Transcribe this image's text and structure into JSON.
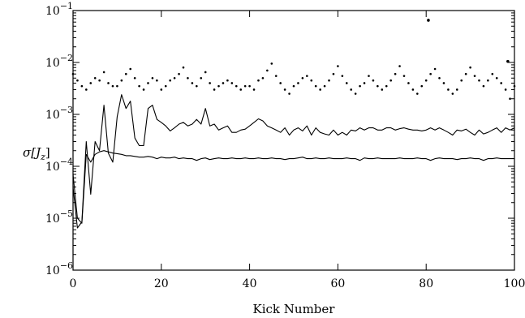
{
  "chart_data": {
    "type": "line",
    "title": "",
    "xlabel": "Kick Number",
    "ylabel": "σ[J_z]",
    "ylabel_display": {
      "main": "σ[J",
      "sub": "z",
      "close": "]"
    },
    "xlim": [
      0,
      100
    ],
    "ylim": [
      1e-06,
      0.1
    ],
    "yscale": "log",
    "grid": false,
    "x_ticks": [
      0,
      20,
      40,
      60,
      80,
      100
    ],
    "x_tick_labels": [
      "0",
      "20",
      "40",
      "60",
      "80",
      "100"
    ],
    "y_ticks": [
      {
        "value": 1e-06,
        "base": "10",
        "exp": "−6"
      },
      {
        "value": 1e-05,
        "base": "10",
        "exp": "−5"
      },
      {
        "value": 0.0001,
        "base": "10",
        "exp": "−4"
      },
      {
        "value": 0.001,
        "base": "10",
        "exp": "−3"
      },
      {
        "value": 0.01,
        "base": "10",
        "exp": "−2"
      },
      {
        "value": 0.1,
        "base": "10",
        "exp": "−1"
      }
    ],
    "series": [
      {
        "style": "dotted-markers",
        "x": [
          0,
          1,
          2,
          3,
          4,
          5,
          6,
          7,
          8,
          9,
          10,
          11,
          12,
          13,
          14,
          15,
          16,
          17,
          18,
          19,
          20,
          21,
          22,
          23,
          24,
          25,
          26,
          27,
          28,
          29,
          30,
          31,
          32,
          33,
          34,
          35,
          36,
          37,
          38,
          39,
          40,
          41,
          42,
          43,
          44,
          45,
          46,
          47,
          48,
          49,
          50,
          51,
          52,
          53,
          54,
          55,
          56,
          57,
          58,
          59,
          60,
          61,
          62,
          63,
          64,
          65,
          66,
          67,
          68,
          69,
          70,
          71,
          72,
          73,
          74,
          75,
          76,
          77,
          78,
          79,
          80,
          81,
          82,
          83,
          84,
          85,
          86,
          87,
          88,
          89,
          90,
          91,
          92,
          93,
          94,
          95,
          96,
          97,
          98,
          99,
          100
        ],
        "y": [
          0.006,
          0.0045,
          0.0035,
          0.003,
          0.004,
          0.005,
          0.0045,
          0.0065,
          0.004,
          0.0035,
          0.0035,
          0.0045,
          0.006,
          0.0075,
          0.005,
          0.0035,
          0.003,
          0.004,
          0.005,
          0.0045,
          0.003,
          0.0035,
          0.0045,
          0.005,
          0.006,
          0.008,
          0.005,
          0.004,
          0.0035,
          0.005,
          0.0065,
          0.004,
          0.003,
          0.0035,
          0.004,
          0.0045,
          0.004,
          0.0035,
          0.003,
          0.0035,
          0.0035,
          0.003,
          0.0045,
          0.005,
          0.007,
          0.0095,
          0.0055,
          0.004,
          0.003,
          0.0025,
          0.0035,
          0.004,
          0.005,
          0.0055,
          0.0045,
          0.0035,
          0.003,
          0.0035,
          0.0045,
          0.006,
          0.0085,
          0.0055,
          0.004,
          0.003,
          0.0025,
          0.0035,
          0.004,
          0.0055,
          0.0045,
          0.0035,
          0.003,
          0.0035,
          0.0045,
          0.006,
          0.0085,
          0.0055,
          0.004,
          0.003,
          0.0025,
          0.0035,
          0.0045,
          0.006,
          0.0075,
          0.005,
          0.004,
          0.003,
          0.0025,
          0.003,
          0.0045,
          0.006,
          0.008,
          0.0055,
          0.0045,
          0.0035,
          0.0045,
          0.006,
          0.005,
          0.004,
          0.003,
          0.002,
          0.0035
        ],
        "extra_points": [
          {
            "x": 80.5,
            "y": 0.065
          },
          {
            "x": 98.5,
            "y": 0.0105
          }
        ]
      },
      {
        "style": "solid-line",
        "x": [
          0,
          1,
          2,
          3,
          4,
          5,
          6,
          7,
          8,
          9,
          10,
          11,
          12,
          13,
          14,
          15,
          16,
          17,
          18,
          19,
          20,
          21,
          22,
          23,
          24,
          25,
          26,
          27,
          28,
          29,
          30,
          31,
          32,
          33,
          34,
          35,
          36,
          37,
          38,
          39,
          40,
          41,
          42,
          43,
          44,
          45,
          46,
          47,
          48,
          49,
          50,
          51,
          52,
          53,
          54,
          55,
          56,
          57,
          58,
          59,
          60,
          61,
          62,
          63,
          64,
          65,
          66,
          67,
          68,
          69,
          70,
          71,
          72,
          73,
          74,
          75,
          76,
          77,
          78,
          79,
          80,
          81,
          82,
          83,
          84,
          85,
          86,
          87,
          88,
          89,
          90,
          91,
          92,
          93,
          94,
          95,
          96,
          97,
          98,
          99,
          100
        ],
        "y": [
          4e-05,
          6.5e-06,
          8.5e-06,
          0.0003,
          2.9e-05,
          0.0003,
          0.0002,
          0.0015,
          0.00018,
          0.00012,
          0.0009,
          0.0024,
          0.0013,
          0.0018,
          0.00035,
          0.00025,
          0.00025,
          0.0013,
          0.0015,
          0.0008,
          0.0007,
          0.0006,
          0.00048,
          0.00055,
          0.00065,
          0.0007,
          0.0006,
          0.00065,
          0.0008,
          0.00065,
          0.0013,
          0.0006,
          0.00065,
          0.0005,
          0.00055,
          0.0006,
          0.00045,
          0.00045,
          0.0005,
          0.00052,
          0.0006,
          0.0007,
          0.00082,
          0.00075,
          0.0006,
          0.00055,
          0.0005,
          0.00045,
          0.00055,
          0.0004,
          0.0005,
          0.00055,
          0.00048,
          0.0006,
          0.0004,
          0.00055,
          0.00045,
          0.00042,
          0.0004,
          0.0005,
          0.0004,
          0.00045,
          0.0004,
          0.0005,
          0.00048,
          0.00055,
          0.0005,
          0.00055,
          0.00055,
          0.0005,
          0.0005,
          0.00055,
          0.00055,
          0.0005,
          0.00053,
          0.00055,
          0.00052,
          0.0005,
          0.0005,
          0.00048,
          0.0005,
          0.00055,
          0.0005,
          0.00055,
          0.0005,
          0.00045,
          0.0004,
          0.0005,
          0.00048,
          0.00052,
          0.00045,
          0.0004,
          0.0005,
          0.00042,
          0.00045,
          0.0005,
          0.00055,
          0.00045,
          0.00055,
          0.0005,
          0.00055
        ]
      },
      {
        "style": "solid-line",
        "x": [
          0,
          1,
          2,
          3,
          4,
          5,
          6,
          7,
          8,
          9,
          10,
          11,
          12,
          13,
          14,
          15,
          16,
          17,
          18,
          19,
          20,
          21,
          22,
          23,
          24,
          25,
          26,
          27,
          28,
          29,
          30,
          31,
          32,
          33,
          34,
          35,
          36,
          37,
          38,
          39,
          40,
          41,
          42,
          43,
          44,
          45,
          46,
          47,
          48,
          49,
          50,
          51,
          52,
          53,
          54,
          55,
          56,
          57,
          58,
          59,
          60,
          61,
          62,
          63,
          64,
          65,
          66,
          67,
          68,
          69,
          70,
          71,
          72,
          73,
          74,
          75,
          76,
          77,
          78,
          79,
          80,
          81,
          82,
          83,
          84,
          85,
          86,
          87,
          88,
          89,
          90,
          91,
          92,
          93,
          94,
          95,
          96,
          97,
          98,
          99,
          100
        ],
        "y": [
          7e-05,
          1e-05,
          8e-06,
          0.00017,
          0.00012,
          0.00017,
          0.00019,
          0.0002,
          0.00019,
          0.00018,
          0.000175,
          0.00017,
          0.00016,
          0.00016,
          0.000155,
          0.00015,
          0.00015,
          0.000155,
          0.00015,
          0.00014,
          0.00015,
          0.000145,
          0.000145,
          0.00015,
          0.00014,
          0.000145,
          0.00014,
          0.00014,
          0.00013,
          0.00014,
          0.000145,
          0.000135,
          0.00014,
          0.000145,
          0.00014,
          0.00014,
          0.000145,
          0.00014,
          0.00014,
          0.000145,
          0.00014,
          0.00014,
          0.000145,
          0.00014,
          0.00014,
          0.000145,
          0.00014,
          0.00014,
          0.000135,
          0.00014,
          0.00014,
          0.000145,
          0.00015,
          0.00014,
          0.00014,
          0.000145,
          0.00014,
          0.00014,
          0.000145,
          0.00014,
          0.00014,
          0.00014,
          0.000145,
          0.00014,
          0.00014,
          0.00013,
          0.000145,
          0.00014,
          0.00014,
          0.000145,
          0.00014,
          0.00014,
          0.00014,
          0.00014,
          0.000145,
          0.00014,
          0.00014,
          0.00014,
          0.000145,
          0.00014,
          0.00014,
          0.00013,
          0.00014,
          0.000145,
          0.00014,
          0.00014,
          0.00014,
          0.000135,
          0.00014,
          0.00014,
          0.000145,
          0.00014,
          0.00014,
          0.00013,
          0.00014,
          0.00014,
          0.000145,
          0.00014,
          0.00014,
          0.00014,
          0.00014
        ]
      }
    ]
  }
}
